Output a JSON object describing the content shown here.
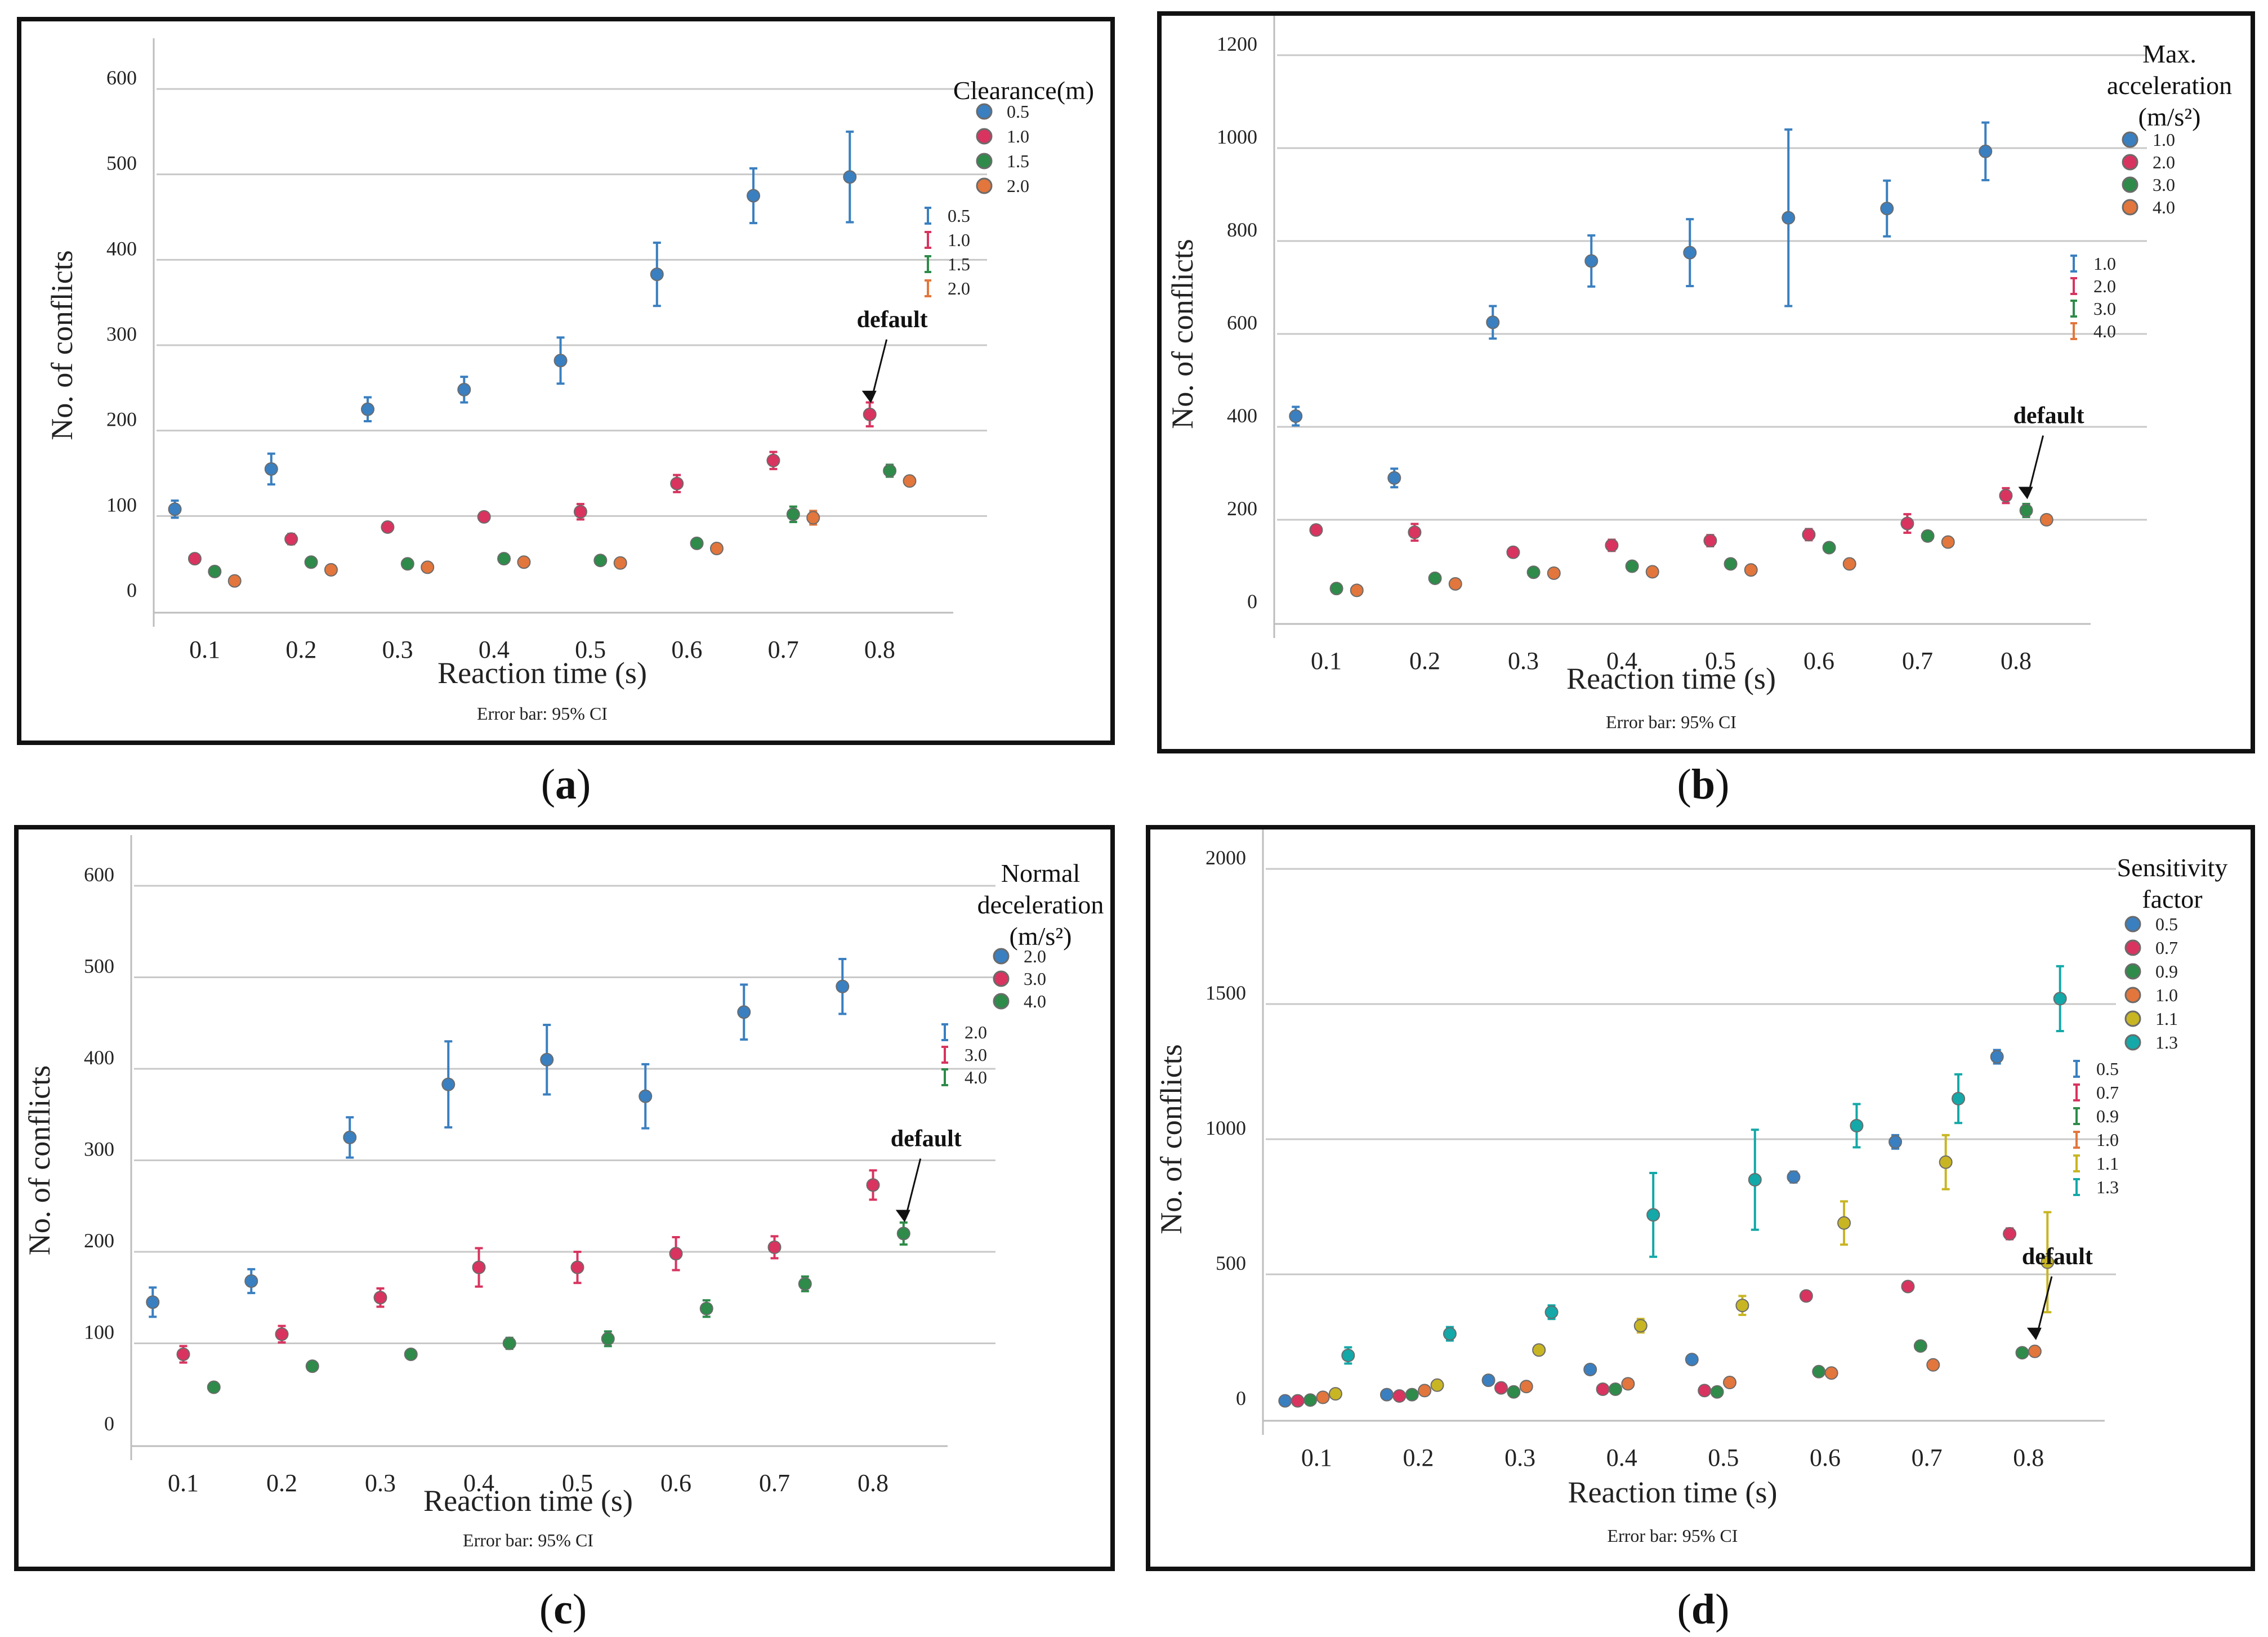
{
  "colors": {
    "blue": "#3a7fc0",
    "red": "#d8345f",
    "green": "#2e8b4a",
    "orange": "#e2763c",
    "yellow": "#c8b523",
    "teal": "#14a8a8"
  },
  "chart_data": [
    {
      "type": "scatter",
      "panel_label": "a",
      "xlabel": "Reaction time (s)",
      "ylabel": "No. of conflicts",
      "footnote": "Error bar: 95% CI",
      "categories": [
        "0.1",
        "0.2",
        "0.3",
        "0.4",
        "0.5",
        "0.6",
        "0.7",
        "0.8"
      ],
      "ylim": [
        0,
        600
      ],
      "yticks": [
        "0",
        "100",
        "200",
        "300",
        "400",
        "500",
        "600"
      ],
      "legend_title": "Clearance(m)",
      "legend_marker_labels": [
        "0.5",
        "1.0",
        "1.5",
        "2.0"
      ],
      "legend_errorbar_labels": [
        "0.5",
        "1.0",
        "1.5",
        "2.0"
      ],
      "annotation": {
        "text": "default",
        "series_index": 1,
        "category_index": 7
      },
      "series": [
        {
          "name": "0.5",
          "color": "blue",
          "values": [
            108,
            155,
            225,
            248,
            282,
            383,
            475,
            497
          ],
          "err": [
            10,
            18,
            14,
            15,
            27,
            37,
            32,
            53
          ]
        },
        {
          "name": "1.0",
          "color": "red",
          "values": [
            50,
            73,
            87,
            99,
            105,
            138,
            165,
            219
          ],
          "err": [
            5,
            6,
            5,
            5,
            9,
            10,
            10,
            14
          ]
        },
        {
          "name": "1.5",
          "color": "green",
          "values": [
            35,
            46,
            44,
            50,
            48,
            68,
            102,
            153
          ],
          "err": [
            3,
            3,
            3,
            3,
            3,
            5,
            9,
            7
          ]
        },
        {
          "name": "2.0",
          "color": "orange",
          "values": [
            24,
            37,
            40,
            46,
            45,
            62,
            98,
            141
          ],
          "err": [
            2,
            2,
            2,
            2,
            2,
            4,
            8,
            5
          ]
        }
      ]
    },
    {
      "type": "scatter",
      "panel_label": "b",
      "xlabel": "Reaction time (s)",
      "ylabel": "No. of conflicts",
      "footnote": "Error bar: 95% CI",
      "categories": [
        "0.1",
        "0.2",
        "0.3",
        "0.4",
        "0.5",
        "0.6",
        "0.7",
        "0.8"
      ],
      "ylim": [
        0,
        1200
      ],
      "yticks": [
        "0",
        "200",
        "400",
        "600",
        "800",
        "1000",
        "1200"
      ],
      "legend_title": "Max. acceleration (m/s²)",
      "legend_marker_labels": [
        "1.0",
        "2.0",
        "3.0",
        "4.0"
      ],
      "legend_errorbar_labels": [
        "1.0",
        "2.0",
        "3.0",
        "4.0"
      ],
      "annotation": {
        "text": "default",
        "series_index": 2,
        "category_index": 7
      },
      "series": [
        {
          "name": "1.0",
          "color": "blue",
          "values": [
            423,
            290,
            625,
            757,
            775,
            850,
            870,
            993
          ],
          "err": [
            20,
            20,
            35,
            55,
            72,
            190,
            60,
            62
          ]
        },
        {
          "name": "2.0",
          "color": "red",
          "values": [
            178,
            173,
            130,
            145,
            155,
            168,
            192,
            252
          ],
          "err": [
            10,
            18,
            10,
            12,
            12,
            12,
            20,
            16
          ]
        },
        {
          "name": "3.0",
          "color": "green",
          "values": [
            52,
            74,
            87,
            100,
            105,
            140,
            165,
            220
          ],
          "err": [
            5,
            6,
            6,
            6,
            6,
            8,
            10,
            14
          ]
        },
        {
          "name": "4.0",
          "color": "orange",
          "values": [
            48,
            62,
            85,
            88,
            92,
            105,
            152,
            200
          ],
          "err": [
            4,
            4,
            4,
            4,
            5,
            5,
            6,
            6
          ]
        }
      ]
    },
    {
      "type": "scatter",
      "panel_label": "c",
      "xlabel": "Reaction time (s)",
      "ylabel": "No. of conflicts",
      "footnote": "Error bar: 95% CI",
      "categories": [
        "0.1",
        "0.2",
        "0.3",
        "0.4",
        "0.5",
        "0.6",
        "0.7",
        "0.8"
      ],
      "ylim": [
        0,
        600
      ],
      "yticks": [
        "0",
        "100",
        "200",
        "300",
        "400",
        "500",
        "600"
      ],
      "legend_title": "Normal deceleration (m/s²)",
      "legend_marker_labels": [
        "2.0",
        "3.0",
        "4.0"
      ],
      "legend_errorbar_labels": [
        "2.0",
        "3.0",
        "4.0"
      ],
      "annotation": {
        "text": "default",
        "series_index": 2,
        "category_index": 7
      },
      "series": [
        {
          "name": "2.0",
          "color": "blue",
          "values": [
            145,
            168,
            325,
            383,
            410,
            370,
            462,
            490
          ],
          "err": [
            16,
            13,
            22,
            47,
            38,
            35,
            30,
            30
          ]
        },
        {
          "name": "3.0",
          "color": "red",
          "values": [
            88,
            110,
            150,
            183,
            183,
            198,
            205,
            273
          ],
          "err": [
            9,
            9,
            10,
            21,
            17,
            18,
            12,
            16
          ]
        },
        {
          "name": "4.0",
          "color": "green",
          "values": [
            52,
            75,
            88,
            100,
            105,
            138,
            165,
            220
          ],
          "err": [
            4,
            5,
            4,
            6,
            8,
            9,
            8,
            12
          ]
        }
      ]
    },
    {
      "type": "scatter",
      "panel_label": "d",
      "xlabel": "Reaction time (s)",
      "ylabel": "No. of conflicts",
      "footnote": "Error bar: 95% CI",
      "categories": [
        "0.1",
        "0.2",
        "0.3",
        "0.4",
        "0.5",
        "0.6",
        "0.7",
        "0.8"
      ],
      "ylim": [
        0,
        2000
      ],
      "yticks": [
        "0",
        "500",
        "1000",
        "1500",
        "2000"
      ],
      "legend_title": "Sensitivity factor",
      "legend_marker_labels": [
        "0.5",
        "0.7",
        "0.9",
        "1.0",
        "1.1",
        "1.3"
      ],
      "legend_errorbar_labels": [
        "0.5",
        "0.7",
        "0.9",
        "1.0",
        "1.1",
        "1.3"
      ],
      "annotation": {
        "text": "default",
        "series_index": 3,
        "category_index": 7
      },
      "series": [
        {
          "name": "0.5",
          "color": "blue",
          "values": [
            32,
            55,
            108,
            148,
            185,
            860,
            990,
            1305
          ],
          "err": [
            3,
            5,
            8,
            10,
            10,
            20,
            25,
            25
          ]
        },
        {
          "name": "0.7",
          "color": "red",
          "values": [
            32,
            50,
            80,
            75,
            70,
            420,
            455,
            650
          ],
          "err": [
            3,
            4,
            6,
            6,
            6,
            10,
            15,
            20
          ]
        },
        {
          "name": "0.9",
          "color": "green",
          "values": [
            35,
            55,
            65,
            75,
            65,
            140,
            235,
            210
          ],
          "err": [
            3,
            4,
            5,
            5,
            5,
            10,
            10,
            12
          ]
        },
        {
          "name": "1.0",
          "color": "orange",
          "values": [
            45,
            70,
            85,
            95,
            100,
            135,
            165,
            215
          ],
          "err": [
            3,
            4,
            5,
            5,
            5,
            8,
            10,
            10
          ]
        },
        {
          "name": "1.1",
          "color": "yellow",
          "values": [
            58,
            90,
            220,
            310,
            385,
            690,
            915,
            545
          ],
          "err": [
            8,
            10,
            15,
            25,
            35,
            80,
            100,
            185
          ]
        },
        {
          "name": "1.3",
          "color": "teal",
          "values": [
            200,
            280,
            360,
            720,
            850,
            1050,
            1150,
            1520
          ],
          "err": [
            30,
            25,
            25,
            155,
            185,
            80,
            90,
            120
          ]
        }
      ]
    }
  ]
}
